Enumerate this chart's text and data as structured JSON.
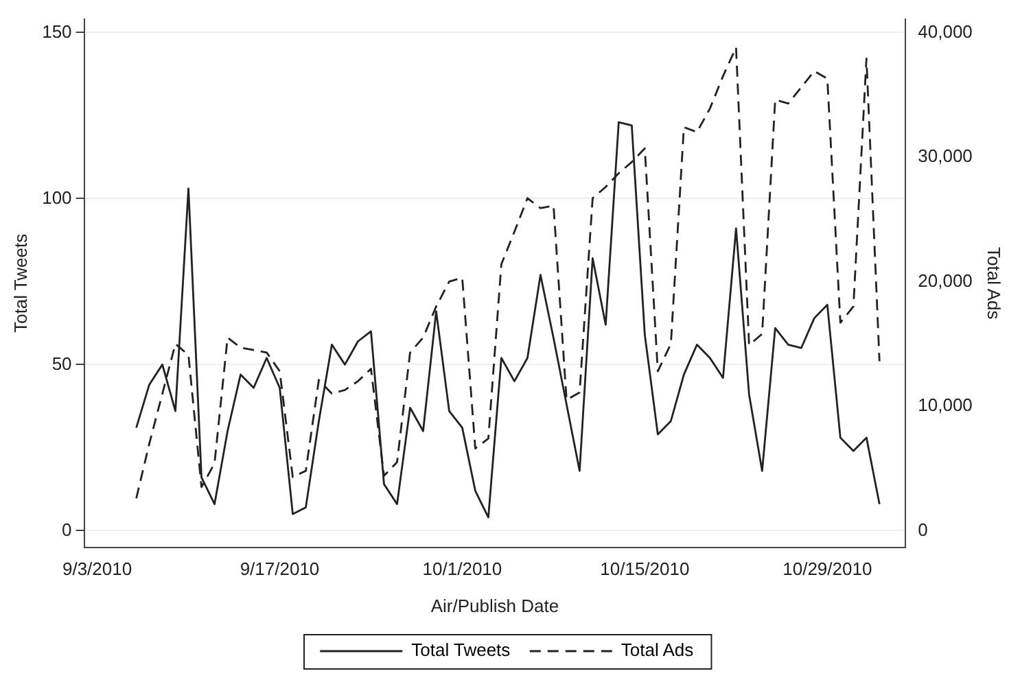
{
  "chart_data": {
    "type": "line",
    "xlabel": "Air/Publish Date",
    "ylabel": "Total Tweets",
    "y2label": "Total Ads",
    "x": [
      "2010-09-06",
      "2010-09-07",
      "2010-09-08",
      "2010-09-09",
      "2010-09-10",
      "2010-09-11",
      "2010-09-12",
      "2010-09-13",
      "2010-09-14",
      "2010-09-15",
      "2010-09-16",
      "2010-09-17",
      "2010-09-18",
      "2010-09-19",
      "2010-09-20",
      "2010-09-21",
      "2010-09-22",
      "2010-09-23",
      "2010-09-24",
      "2010-09-25",
      "2010-09-26",
      "2010-09-27",
      "2010-09-28",
      "2010-09-29",
      "2010-09-30",
      "2010-10-01",
      "2010-10-02",
      "2010-10-03",
      "2010-10-04",
      "2010-10-05",
      "2010-10-06",
      "2010-10-07",
      "2010-10-08",
      "2010-10-09",
      "2010-10-10",
      "2010-10-11",
      "2010-10-12",
      "2010-10-13",
      "2010-10-14",
      "2010-10-15",
      "2010-10-16",
      "2010-10-17",
      "2010-10-18",
      "2010-10-19",
      "2010-10-20",
      "2010-10-21",
      "2010-10-22",
      "2010-10-23",
      "2010-10-24",
      "2010-10-25",
      "2010-10-26",
      "2010-10-27",
      "2010-10-28",
      "2010-10-29",
      "2010-10-30",
      "2010-10-31",
      "2010-11-01",
      "2010-11-02"
    ],
    "series": [
      {
        "name": "Total Tweets",
        "color": "#222222",
        "line_style": "solid",
        "values": [
          31,
          44,
          50,
          36,
          103,
          16,
          8,
          30,
          47,
          43,
          52,
          43,
          5,
          7,
          33,
          56,
          50,
          57,
          60,
          14,
          8,
          37,
          30,
          66,
          36,
          31,
          12,
          4,
          52,
          45,
          52,
          77,
          58,
          38,
          18,
          82,
          62,
          123,
          122,
          59,
          29,
          33,
          47,
          56,
          52,
          46,
          91,
          41,
          18,
          61,
          56,
          55,
          64,
          68,
          28,
          24,
          28,
          8
        ]
      },
      {
        "name": "Total Ads",
        "color": "#222222",
        "line_style": "dashed",
        "axis": "y2",
        "values": [
          2600,
          7000,
          11000,
          15000,
          14100,
          3500,
          5400,
          15500,
          14700,
          14500,
          14300,
          12800,
          4300,
          4800,
          12100,
          11000,
          11300,
          12000,
          13000,
          4400,
          5500,
          14300,
          15500,
          18000,
          20000,
          20300,
          6600,
          7400,
          21400,
          24000,
          26700,
          25900,
          26100,
          10500,
          11100,
          26700,
          27600,
          28700,
          29600,
          30700,
          12800,
          15000,
          32400,
          32000,
          33900,
          36500,
          38800,
          14900,
          15800,
          34600,
          34300,
          35600,
          36900,
          36300,
          16700,
          18000,
          37900,
          13600
        ]
      }
    ],
    "xlim": [
      "2010-09-02",
      "2010-11-04"
    ],
    "xticks": [
      {
        "value": "2010-09-03",
        "label": "9/3/2010"
      },
      {
        "value": "2010-09-17",
        "label": "9/17/2010"
      },
      {
        "value": "2010-10-01",
        "label": "10/1/2010"
      },
      {
        "value": "2010-10-15",
        "label": "10/15/2010"
      },
      {
        "value": "2010-10-29",
        "label": "10/29/2010"
      }
    ],
    "ylim": [
      -5,
      154
    ],
    "yticks": [
      0,
      50,
      100,
      150
    ],
    "y2lim": [
      -1333,
      41067
    ],
    "y2ticks": [
      {
        "value": 0,
        "label": "0"
      },
      {
        "value": 10000,
        "label": "10,000"
      },
      {
        "value": 20000,
        "label": "20,000"
      },
      {
        "value": 30000,
        "label": "30,000"
      },
      {
        "value": 40000,
        "label": "40,000"
      }
    ],
    "grid": "y",
    "legend": "bottom",
    "marker": "none"
  }
}
